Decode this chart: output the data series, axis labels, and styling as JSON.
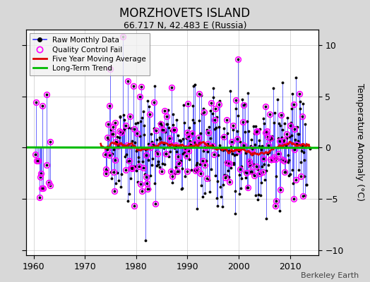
{
  "title": "MORZHOVETS ISLAND",
  "subtitle": "66.717 N, 42.483 E (Russia)",
  "ylabel": "Temperature Anomaly (°C)",
  "attribution": "Berkeley Earth",
  "xlim": [
    1958.5,
    2015.5
  ],
  "ylim": [
    -10.5,
    11.5
  ],
  "yticks": [
    -10,
    -5,
    0,
    5,
    10
  ],
  "xticks": [
    1960,
    1970,
    1980,
    1990,
    2000,
    2010
  ],
  "background_color": "#d8d8d8",
  "plot_bg_color": "#ffffff",
  "raw_line_color": "#3333ff",
  "raw_dot_color": "#000000",
  "qc_fail_color": "#ff00ff",
  "moving_avg_color": "#dd0000",
  "trend_color": "#00bb00",
  "seed": 42
}
